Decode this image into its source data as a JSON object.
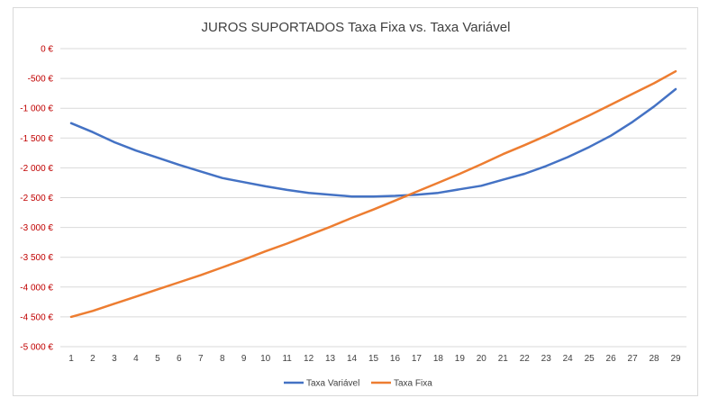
{
  "chart_data": {
    "type": "line",
    "title": "JUROS SUPORTADOS Taxa Fixa vs. Taxa Variável",
    "xlabel": "",
    "ylabel": "",
    "categories": [
      "1",
      "2",
      "3",
      "4",
      "5",
      "6",
      "7",
      "8",
      "9",
      "10",
      "11",
      "12",
      "13",
      "14",
      "15",
      "16",
      "17",
      "18",
      "19",
      "20",
      "21",
      "22",
      "23",
      "24",
      "25",
      "26",
      "27",
      "28",
      "29"
    ],
    "ylim": [
      -5000,
      0
    ],
    "yticks": [
      0,
      -500,
      -1000,
      -1500,
      -2000,
      -2500,
      -3000,
      -3500,
      -4000,
      -4500,
      -5000
    ],
    "ytick_labels": [
      "0 €",
      "-500 €",
      "-1 000 €",
      "-1 500 €",
      "-2 000 €",
      "-2 500 €",
      "-3 000 €",
      "-3 500 €",
      "-4 000 €",
      "-4 500 €",
      "-5 000 €"
    ],
    "grid": true,
    "legend_position": "bottom",
    "series": [
      {
        "name": "Taxa Variável",
        "color": "#4472c4",
        "values": [
          -1250,
          -1400,
          -1570,
          -1710,
          -1830,
          -1950,
          -2060,
          -2170,
          -2240,
          -2310,
          -2370,
          -2420,
          -2450,
          -2480,
          -2480,
          -2470,
          -2450,
          -2420,
          -2360,
          -2300,
          -2200,
          -2100,
          -1970,
          -1820,
          -1650,
          -1460,
          -1230,
          -970,
          -680
        ]
      },
      {
        "name": "Taxa Fixa",
        "color": "#ed7d31",
        "values": [
          -4500,
          -4400,
          -4280,
          -4160,
          -4040,
          -3920,
          -3800,
          -3670,
          -3540,
          -3400,
          -3270,
          -3130,
          -2990,
          -2840,
          -2700,
          -2550,
          -2400,
          -2250,
          -2100,
          -1940,
          -1770,
          -1620,
          -1460,
          -1290,
          -1120,
          -940,
          -760,
          -580,
          -380
        ]
      }
    ]
  }
}
